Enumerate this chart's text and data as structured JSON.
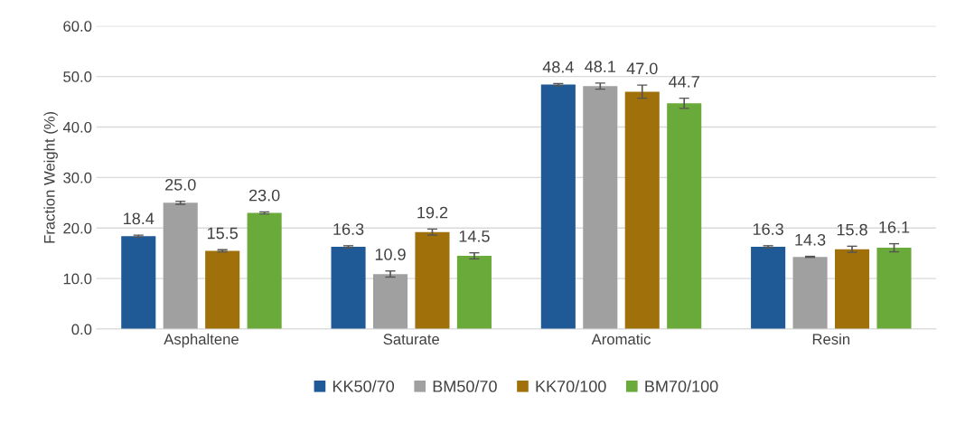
{
  "chart_data": {
    "type": "bar",
    "ylabel": "Fraction Weight (%)",
    "categories": [
      "Asphaltene",
      "Saturate",
      "Aromatic",
      "Resin"
    ],
    "series": [
      {
        "name": "KK50/70",
        "color": "#1f5a96",
        "values": [
          18.4,
          16.3,
          48.4,
          16.3
        ],
        "errors": [
          0.2,
          0.2,
          0.2,
          0.2
        ],
        "value_labels": [
          "18.4",
          "16.3",
          "48.4",
          "16.3"
        ]
      },
      {
        "name": "BM50/70",
        "color": "#a0a0a0",
        "values": [
          25.0,
          10.9,
          48.1,
          14.3
        ],
        "errors": [
          0.3,
          0.6,
          0.6,
          0.1
        ],
        "value_labels": [
          "25.0",
          "10.9",
          "48.1",
          "14.3"
        ]
      },
      {
        "name": "KK70/100",
        "color": "#a0700a",
        "values": [
          15.5,
          19.2,
          47.0,
          15.8
        ],
        "errors": [
          0.2,
          0.6,
          1.3,
          0.6
        ],
        "value_labels": [
          "15.5",
          "19.2",
          "47.0",
          "15.8"
        ]
      },
      {
        "name": "BM70/100",
        "color": "#6aaa3a",
        "values": [
          23.0,
          14.5,
          44.7,
          16.1
        ],
        "errors": [
          0.2,
          0.6,
          1.0,
          0.8
        ],
        "value_labels": [
          "23.0",
          "14.5",
          "44.7",
          "16.1"
        ]
      }
    ],
    "ylim": [
      0,
      60
    ],
    "yticks": [
      {
        "value": 0,
        "label": "0.0"
      },
      {
        "value": 10,
        "label": "10.0"
      },
      {
        "value": 20,
        "label": "20.0"
      },
      {
        "value": 30,
        "label": "30.0"
      },
      {
        "value": 40,
        "label": "40.0"
      },
      {
        "value": 50,
        "label": "50.0"
      },
      {
        "value": 60,
        "label": "60.0"
      }
    ],
    "grid": "y",
    "legend": "bottom"
  }
}
